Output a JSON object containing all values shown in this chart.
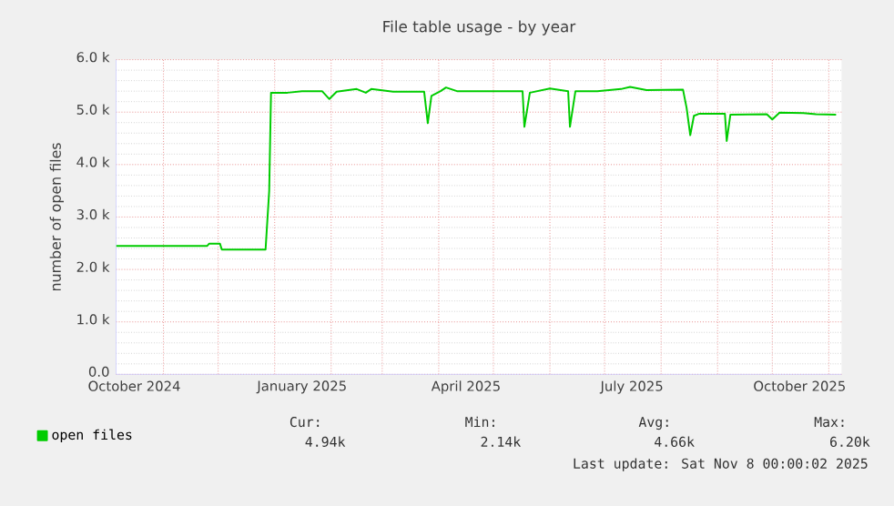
{
  "chart_data": {
    "type": "line",
    "title": "File table usage - by year",
    "ylabel": "number of open files",
    "xlim": [
      "2024-10-06",
      "2025-11-08"
    ],
    "xticks": [
      {
        "value": "2024-10-16",
        "label": "October 2024"
      },
      {
        "value": "2025-01-16",
        "label": "January 2025"
      },
      {
        "value": "2025-04-16",
        "label": "April 2025"
      },
      {
        "value": "2025-07-16",
        "label": "July 2025"
      },
      {
        "value": "2025-10-16",
        "label": "October 2025"
      },
      {
        "value": "2024-11-01",
        "label": null
      },
      {
        "value": "2024-12-01",
        "label": null
      },
      {
        "value": "2025-01-01",
        "label": null
      },
      {
        "value": "2025-02-01",
        "label": null
      },
      {
        "value": "2025-03-01",
        "label": null
      },
      {
        "value": "2025-04-01",
        "label": null
      },
      {
        "value": "2025-05-01",
        "label": null
      },
      {
        "value": "2025-06-01",
        "label": null
      },
      {
        "value": "2025-07-01",
        "label": null
      },
      {
        "value": "2025-08-01",
        "label": null
      },
      {
        "value": "2025-09-01",
        "label": null
      },
      {
        "value": "2025-10-01",
        "label": null
      },
      {
        "value": "2025-11-01",
        "label": null
      }
    ],
    "ylim": [
      0,
      6000
    ],
    "yticks": [
      {
        "value": 0,
        "label": "0.0"
      },
      {
        "value": 1000,
        "label": "1.0 k"
      },
      {
        "value": 2000,
        "label": "2.0 k"
      },
      {
        "value": 3000,
        "label": "3.0 k"
      },
      {
        "value": 4000,
        "label": "4.0 k"
      },
      {
        "value": 5000,
        "label": "5.0 k"
      },
      {
        "value": 6000,
        "label": "6.0 k"
      }
    ],
    "grid": true,
    "legend": "bottom",
    "x": [
      "2024-10-06",
      "2024-11-25",
      "2024-11-26",
      "2024-12-02",
      "2024-12-03",
      "2024-12-27",
      "2024-12-29",
      "2024-12-30",
      "2025-01-08",
      "2025-01-16",
      "2025-01-27",
      "2025-01-31",
      "2025-02-04",
      "2025-02-15",
      "2025-02-20",
      "2025-02-23",
      "2025-03-07",
      "2025-03-24",
      "2025-03-26",
      "2025-03-28",
      "2025-04-02",
      "2025-04-05",
      "2025-04-11",
      "2025-05-08",
      "2025-05-17",
      "2025-05-18",
      "2025-05-21",
      "2025-06-01",
      "2025-06-11",
      "2025-06-12",
      "2025-06-15",
      "2025-06-27",
      "2025-07-10",
      "2025-07-15",
      "2025-07-24",
      "2025-08-13",
      "2025-08-15",
      "2025-08-17",
      "2025-08-19",
      "2025-08-22",
      "2025-09-05",
      "2025-09-06",
      "2025-09-08",
      "2025-09-28",
      "2025-10-01",
      "2025-10-05",
      "2025-10-18",
      "2025-10-25",
      "2025-11-05"
    ],
    "series": [
      {
        "name": "open files",
        "color": "#00cc00",
        "values": [
          2450,
          2450,
          2490,
          2490,
          2380,
          2380,
          3500,
          5370,
          5370,
          5400,
          5400,
          5250,
          5390,
          5440,
          5370,
          5440,
          5390,
          5390,
          4790,
          5310,
          5400,
          5470,
          5400,
          5400,
          5400,
          4720,
          5370,
          5450,
          5400,
          4720,
          5400,
          5400,
          5440,
          5480,
          5420,
          5430,
          5080,
          4560,
          4930,
          4970,
          4970,
          4450,
          4950,
          4960,
          4860,
          4990,
          4980,
          4960,
          4950
        ]
      }
    ],
    "annotations": [
      "Cur:",
      "Min:",
      "Avg:",
      "Max:",
      "4.94k",
      "2.14k",
      "4.66k",
      "6.20k",
      "Last update: Sat Nov  8 00:00:02 2025"
    ]
  }
}
